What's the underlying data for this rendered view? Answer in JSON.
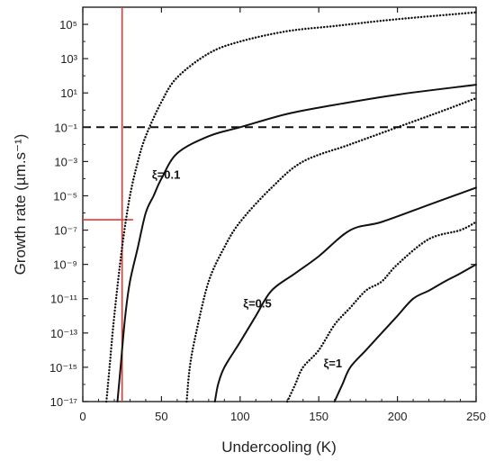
{
  "chart_data": {
    "type": "line",
    "title": "",
    "xlabel": "Undercooling (K)",
    "ylabel": "Growth rate (µm.s⁻¹)",
    "xlim": [
      0,
      250
    ],
    "ylim": [
      1e-17,
      1000000.0
    ],
    "yscale": "log",
    "grid": false,
    "x_ticks": [
      {
        "value": 0,
        "label": "0"
      },
      {
        "value": 50,
        "label": "50"
      },
      {
        "value": 100,
        "label": "100"
      },
      {
        "value": 150,
        "label": "150"
      },
      {
        "value": 200,
        "label": "200"
      },
      {
        "value": 250,
        "label": "250"
      }
    ],
    "y_ticks": [
      {
        "exp": 5,
        "label": "10⁵"
      },
      {
        "exp": 3,
        "label": "10³"
      },
      {
        "exp": 1,
        "label": "10¹"
      },
      {
        "exp": -1,
        "label": "10⁻¹"
      },
      {
        "exp": -3,
        "label": "10⁻³"
      },
      {
        "exp": -5,
        "label": "10⁻⁵"
      },
      {
        "exp": -7,
        "label": "10⁻⁷"
      },
      {
        "exp": -9,
        "label": "10⁻⁹"
      },
      {
        "exp": -11,
        "label": "10⁻¹¹"
      },
      {
        "exp": -13,
        "label": "10⁻¹³"
      },
      {
        "exp": -15,
        "label": "10⁻¹⁵"
      },
      {
        "exp": -17,
        "label": "10⁻¹⁷"
      }
    ],
    "series": [
      {
        "style": "dotted",
        "color": "#111111",
        "x": [
          15,
          17,
          20,
          25,
          30,
          35,
          40,
          50,
          60,
          80,
          100,
          130,
          160,
          200,
          250
        ],
        "y": [
          1e-17,
          1e-15,
          1e-12,
          1e-08,
          1e-05,
          0.001,
          0.03,
          3,
          80,
          2000,
          10000,
          40000,
          80000,
          200000,
          500000
        ]
      },
      {
        "style": "solid",
        "color": "#111111",
        "label": "ξ=0.1",
        "x": [
          22,
          24,
          27,
          30,
          35,
          40,
          45,
          50,
          60,
          80,
          100,
          130,
          160,
          200,
          250
        ],
        "y": [
          1e-17,
          1e-15,
          1e-12,
          1e-10,
          1e-08,
          1e-06,
          1e-05,
          0.0001,
          0.003,
          0.03,
          0.1,
          0.6,
          2,
          8,
          30
        ]
      },
      {
        "style": "dotted",
        "color": "#111111",
        "x": [
          66,
          68,
          72,
          80,
          90,
          100,
          120,
          140,
          170,
          200,
          230,
          250
        ],
        "y": [
          1e-17,
          1e-15,
          1e-13,
          1e-10,
          1e-08,
          3e-07,
          3e-05,
          0.001,
          0.01,
          0.1,
          1,
          5
        ]
      },
      {
        "style": "solid",
        "color": "#111111",
        "label": "ξ=0.5",
        "x": [
          84,
          86,
          90,
          100,
          110,
          120,
          135,
          150,
          170,
          190,
          220,
          250
        ],
        "y": [
          1e-17,
          1e-16,
          1e-15,
          3e-14,
          1e-12,
          3e-11,
          3e-10,
          3e-09,
          1e-07,
          3e-07,
          3e-06,
          3e-05
        ]
      },
      {
        "style": "dotted",
        "color": "#111111",
        "x": [
          130,
          135,
          140,
          150,
          160,
          170,
          180,
          190,
          200,
          220,
          240,
          250
        ],
        "y": [
          1e-17,
          1e-16,
          1e-15,
          1e-14,
          3e-13,
          3e-12,
          3e-11,
          1e-10,
          1e-09,
          3e-08,
          1e-07,
          3e-07
        ]
      },
      {
        "style": "solid",
        "color": "#111111",
        "label": "ξ=1",
        "x": [
          160,
          165,
          170,
          180,
          190,
          200,
          210,
          220,
          230,
          240,
          250
        ],
        "y": [
          1e-17,
          1e-16,
          1e-15,
          1e-14,
          1e-13,
          1e-12,
          1e-11,
          3e-11,
          1e-10,
          3e-10,
          1e-09
        ]
      }
    ],
    "reference_lines": [
      {
        "orientation": "horizontal",
        "y": 0.1,
        "style": "dashed",
        "color": "#111111"
      },
      {
        "orientation": "vertical",
        "x": 25,
        "color": "#e53935"
      },
      {
        "orientation": "horizontal",
        "y": 4e-07,
        "x_range": [
          0,
          32
        ],
        "color": "#e53935"
      }
    ],
    "annotations": [
      {
        "text": "ξ=0.1",
        "x": 44,
        "y": 0.0001
      },
      {
        "text": "ξ=0.5",
        "x": 102,
        "y": 3e-12
      },
      {
        "text": "ξ=1",
        "x": 153,
        "y": 1e-15
      }
    ]
  }
}
